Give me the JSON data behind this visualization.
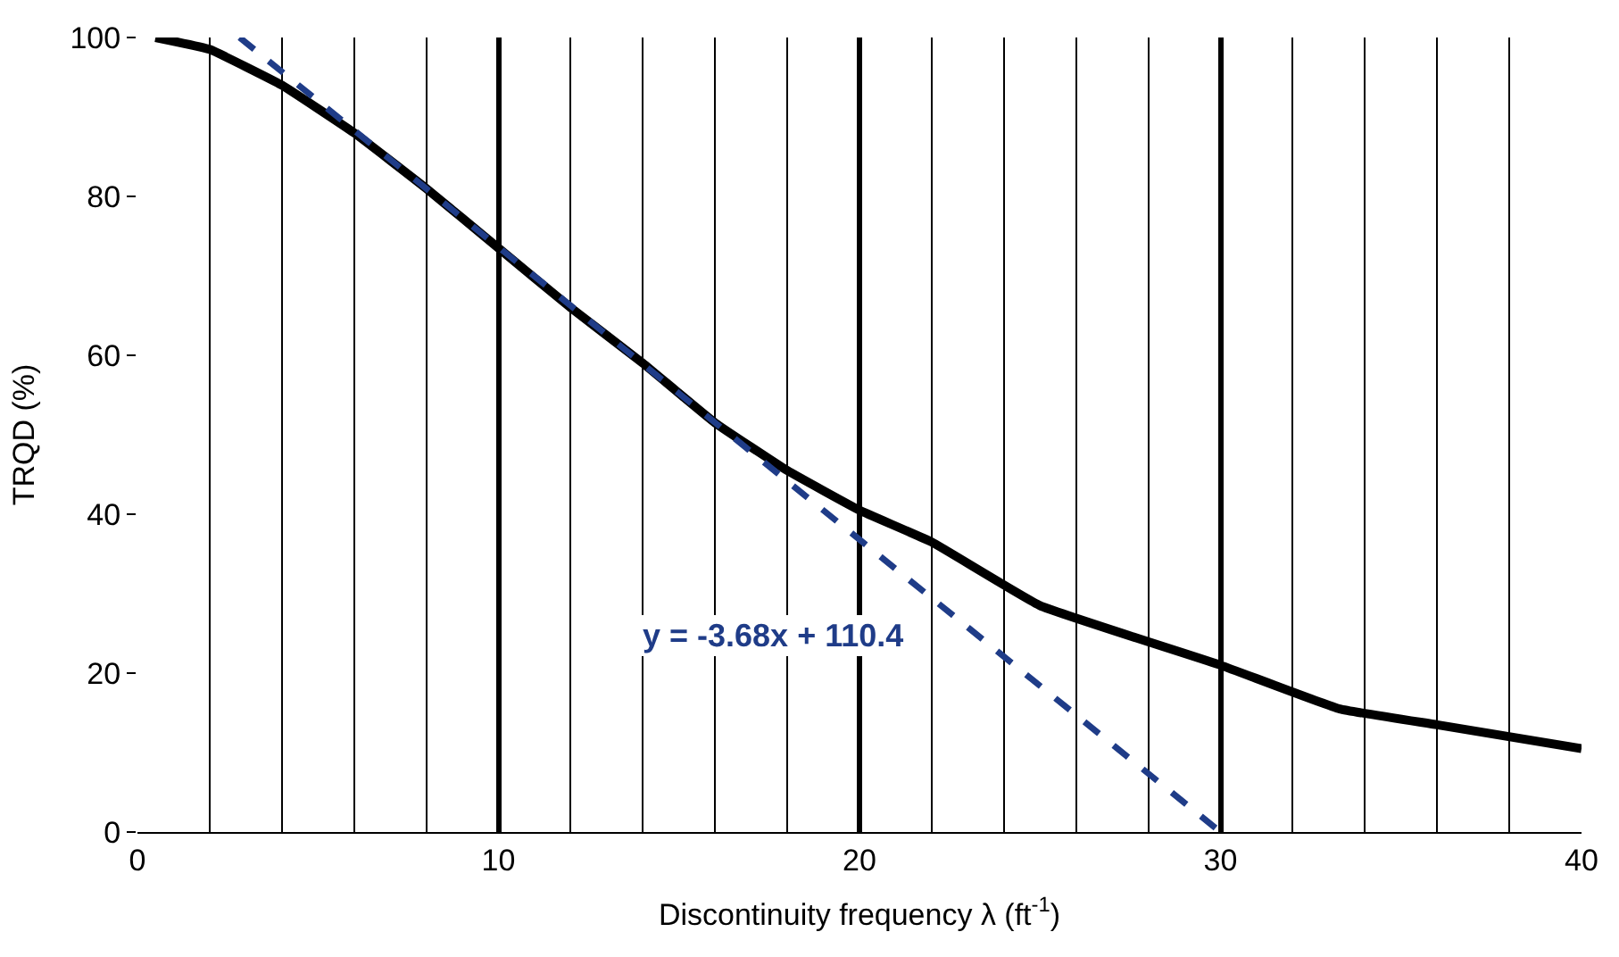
{
  "chart_data": {
    "type": "line",
    "xlabel": "Discontinuity frequency λ (ft$^{-1}$)",
    "ylabel": "TRQD (%)",
    "xlim": [
      0,
      40
    ],
    "ylim": [
      0,
      100
    ],
    "xticks": [
      0,
      {
        "value": 2,
        "label": null
      },
      {
        "value": 4,
        "label": null
      },
      {
        "value": 6,
        "label": null
      },
      {
        "value": 8,
        "label": null
      },
      10,
      {
        "value": 12,
        "label": null
      },
      {
        "value": 14,
        "label": null
      },
      {
        "value": 16,
        "label": null
      },
      {
        "value": 18,
        "label": null
      },
      20,
      {
        "value": 22,
        "label": null
      },
      {
        "value": 24,
        "label": null
      },
      {
        "value": 26,
        "label": null
      },
      {
        "value": 28,
        "label": null
      },
      30,
      {
        "value": 32,
        "label": null
      },
      {
        "value": 34,
        "label": null
      },
      {
        "value": 36,
        "label": null
      },
      {
        "value": 38,
        "label": null
      },
      40
    ],
    "yticks": [
      0,
      20,
      40,
      60,
      80,
      100
    ],
    "grid": "x",
    "legend": false,
    "marker": "none",
    "series": [
      {
        "color": "#000000",
        "line_style": "solid",
        "x": [
          0.5,
          2,
          4,
          6,
          8,
          10,
          12,
          14,
          16,
          18,
          20,
          22,
          25,
          30,
          33.3,
          36,
          40
        ],
        "values": [
          100,
          98.5,
          94,
          88,
          81,
          73.5,
          66,
          59,
          51.5,
          45.5,
          40.5,
          36.5,
          28.5,
          21,
          15.5,
          13.5,
          10.5
        ]
      },
      {
        "color": "#1f3c88",
        "line_style": "dashed",
        "x": [
          2.83,
          30
        ],
        "values": [
          100,
          0
        ]
      }
    ],
    "annotations": [
      "y = -3.68x + 110.4"
    ]
  }
}
